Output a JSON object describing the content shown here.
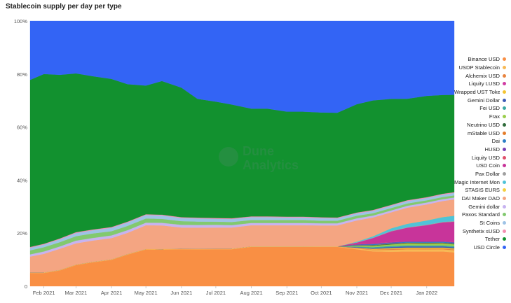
{
  "chart_data": {
    "type": "area",
    "title": "Stablecoin supply per day per type",
    "xlabel": "",
    "ylabel": "",
    "ylim": [
      0,
      100
    ],
    "y_ticks": [
      "0",
      "20%",
      "40%",
      "60%",
      "80%",
      "100%"
    ],
    "x_ticks": [
      "Feb 2021",
      "Mar 2021",
      "Apr 2021",
      "May 2021",
      "Jun 2021",
      "Jul 2021",
      "Aug 2021",
      "Sep 2021",
      "Oct 2021",
      "Nov 2021",
      "Dec 2021",
      "Jan 2022"
    ],
    "x": [
      "2021-01-20",
      "2021-02-01",
      "2021-02-15",
      "2021-03-01",
      "2021-03-15",
      "2021-04-01",
      "2021-04-15",
      "2021-05-01",
      "2021-05-15",
      "2021-06-01",
      "2021-06-15",
      "2021-07-01",
      "2021-07-15",
      "2021-08-01",
      "2021-08-15",
      "2021-09-01",
      "2021-09-15",
      "2021-10-01",
      "2021-10-15",
      "2021-11-01",
      "2021-11-15",
      "2021-12-01",
      "2021-12-15",
      "2022-01-01",
      "2022-01-15",
      "2022-01-25"
    ],
    "legend_position": "right",
    "watermark": "Dune Analytics",
    "series": [
      {
        "name": "Binance USD",
        "color": "#f98f44",
        "values": [
          5,
          5,
          6,
          8,
          9,
          10,
          12,
          14,
          14,
          14,
          14,
          14,
          14,
          15,
          15,
          15,
          15,
          15,
          15,
          14,
          13,
          13,
          13,
          13,
          13,
          12.5
        ]
      },
      {
        "name": "USDP Stablecoin",
        "color": "#f7b955",
        "values": [
          0.2,
          0.2,
          0.2,
          0.2,
          0.2,
          0.2,
          0.2,
          0.2,
          0.2,
          0.2,
          0.2,
          0.2,
          0.2,
          0.2,
          0.2,
          0.2,
          0.2,
          0.2,
          0.2,
          0.3,
          0.5,
          0.7,
          0.8,
          0.8,
          0.8,
          0.8
        ]
      },
      {
        "name": "Alchemix USD",
        "color": "#e8843f",
        "values": [
          0,
          0,
          0,
          0,
          0,
          0,
          0,
          0,
          0,
          0,
          0,
          0,
          0,
          0,
          0,
          0,
          0,
          0,
          0,
          0.1,
          0.2,
          0.3,
          0.3,
          0.3,
          0.3,
          0.3
        ]
      },
      {
        "name": "Liquity LUSD",
        "color": "#d03da4",
        "values": [
          0,
          0,
          0,
          0,
          0,
          0,
          0,
          0,
          0,
          0,
          0,
          0,
          0,
          0,
          0,
          0,
          0,
          0,
          0,
          0,
          0,
          0,
          0,
          0,
          0,
          0
        ]
      },
      {
        "name": "Wrapped UST Token",
        "color": "#f4c431",
        "values": [
          0,
          0,
          0,
          0,
          0,
          0,
          0,
          0,
          0,
          0,
          0,
          0,
          0,
          0,
          0,
          0,
          0,
          0,
          0,
          0.2,
          0.3,
          0.4,
          0.4,
          0.4,
          0.4,
          0.4
        ]
      },
      {
        "name": "Gemini Dollar",
        "color": "#3d5ab5",
        "values": [
          0,
          0,
          0,
          0,
          0,
          0,
          0,
          0,
          0,
          0,
          0,
          0,
          0,
          0,
          0,
          0,
          0,
          0,
          0,
          0.2,
          0.3,
          0.4,
          0.4,
          0.4,
          0.4,
          0.4
        ]
      },
      {
        "name": "Fei USD",
        "color": "#3ba9a3",
        "values": [
          0,
          0,
          0,
          0,
          0,
          0,
          0,
          0,
          0,
          0,
          0,
          0,
          0,
          0,
          0,
          0,
          0,
          0,
          0,
          0.2,
          0.3,
          0.4,
          0.4,
          0.4,
          0.4,
          0.4
        ]
      },
      {
        "name": "Frax",
        "color": "#9bce4c",
        "values": [
          0,
          0,
          0,
          0,
          0,
          0,
          0,
          0,
          0,
          0,
          0,
          0,
          0,
          0,
          0,
          0,
          0,
          0,
          0,
          0.3,
          0.5,
          0.6,
          0.7,
          0.7,
          0.7,
          0.7
        ]
      },
      {
        "name": "Neutrino USD",
        "color": "#2f6b3a",
        "values": [
          0,
          0,
          0,
          0,
          0,
          0,
          0,
          0,
          0,
          0,
          0,
          0,
          0,
          0,
          0,
          0,
          0,
          0,
          0,
          0.1,
          0.2,
          0.2,
          0.2,
          0.2,
          0.2,
          0.2
        ]
      },
      {
        "name": "mStable USD",
        "color": "#e47d2c",
        "values": [
          0,
          0,
          0,
          0,
          0,
          0,
          0,
          0,
          0,
          0,
          0,
          0,
          0,
          0,
          0,
          0,
          0,
          0,
          0,
          0.1,
          0.1,
          0.1,
          0.1,
          0.1,
          0.1,
          0.1
        ]
      },
      {
        "name": "Dai",
        "color": "#2b7ec6",
        "values": [
          0,
          0,
          0,
          0,
          0,
          0,
          0,
          0,
          0,
          0,
          0,
          0,
          0,
          0,
          0,
          0,
          0,
          0,
          0,
          0.2,
          0.3,
          0.3,
          0.3,
          0.3,
          0.3,
          0.3
        ]
      },
      {
        "name": "HUSD",
        "color": "#7b3fb5",
        "values": [
          0,
          0,
          0,
          0,
          0,
          0,
          0,
          0,
          0,
          0,
          0,
          0,
          0,
          0,
          0,
          0,
          0,
          0,
          0,
          0.2,
          0.2,
          0.2,
          0.2,
          0.2,
          0.2,
          0.2
        ]
      },
      {
        "name": "Liquity USD",
        "color": "#e0506b",
        "values": [
          0,
          0,
          0,
          0,
          0,
          0,
          0,
          0,
          0,
          0,
          0,
          0,
          0,
          0,
          0,
          0,
          0,
          0,
          0,
          0.1,
          0.1,
          0.1,
          0.1,
          0.1,
          0.1,
          0.1
        ]
      },
      {
        "name": "USD Coin",
        "color": "#c8349a",
        "values": [
          0,
          0,
          0,
          0,
          0,
          0,
          0,
          0,
          0,
          0,
          0,
          0,
          0,
          0,
          0,
          0,
          0,
          0,
          0,
          0.5,
          2,
          4,
          5,
          6,
          7,
          7.5
        ]
      },
      {
        "name": "Pax Dollar",
        "color": "#a0a0a0",
        "values": [
          0,
          0,
          0,
          0,
          0,
          0,
          0,
          0,
          0,
          0,
          0,
          0,
          0,
          0,
          0,
          0,
          0,
          0,
          0,
          0.1,
          0.1,
          0.2,
          0.2,
          0.2,
          0.2,
          0.2
        ]
      },
      {
        "name": "Magic Internet Money",
        "color": "#4fc3d8",
        "values": [
          0,
          0,
          0,
          0,
          0,
          0,
          0,
          0,
          0,
          0,
          0,
          0,
          0,
          0,
          0,
          0,
          0,
          0,
          0,
          0.3,
          0.6,
          1,
          1.3,
          1.6,
          1.8,
          2
        ]
      },
      {
        "name": "STASIS EURS",
        "color": "#f4d03f",
        "values": [
          0,
          0,
          0,
          0,
          0,
          0,
          0,
          0,
          0,
          0,
          0,
          0,
          0,
          0,
          0,
          0,
          0,
          0,
          0,
          0,
          0,
          0,
          0,
          0,
          0,
          0
        ]
      },
      {
        "name": "DAI Maker DAO",
        "color": "#f4a582",
        "values": [
          6,
          7,
          8,
          8,
          8,
          8,
          8,
          9,
          9,
          8,
          8,
          8,
          8,
          8,
          8,
          8,
          8,
          8,
          8,
          8,
          7,
          6,
          6,
          6,
          6,
          6
        ]
      },
      {
        "name": "Gemini dollar",
        "color": "#c7b3f0",
        "values": [
          0.8,
          0.9,
          0.9,
          1,
          1,
          1,
          1,
          1,
          1,
          1,
          1,
          1,
          0.9,
          0.9,
          0.9,
          0.9,
          0.9,
          0.8,
          0.8,
          0.8,
          0.7,
          0.7,
          0.7,
          0.7,
          0.7,
          0.7
        ]
      },
      {
        "name": "Paxos Standard",
        "color": "#82c96f",
        "values": [
          1.5,
          1.6,
          1.6,
          1.7,
          1.7,
          1.6,
          1.6,
          1.6,
          1.5,
          1.4,
          1.3,
          1.2,
          1.2,
          1.1,
          1.1,
          1.1,
          1.1,
          1.0,
          1.0,
          1.0,
          0.9,
          0.9,
          0.9,
          0.8,
          0.8,
          0.8
        ]
      },
      {
        "name": "St Coins",
        "color": "#9ec3e6",
        "values": [
          1,
          1,
          1.1,
          1.2,
          1.2,
          1.3,
          1.3,
          1.3,
          1.3,
          1.2,
          1.2,
          1.1,
          1.1,
          1.1,
          1.1,
          1.0,
          1.0,
          1.0,
          0.9,
          0.9,
          0.9,
          0.9,
          0.9,
          0.9,
          0.9,
          0.9
        ]
      },
      {
        "name": "Synthetix sUSD",
        "color": "#f48fb1",
        "values": [
          0.3,
          0.3,
          0.3,
          0.3,
          0.3,
          0.3,
          0.3,
          0.3,
          0.3,
          0.3,
          0.3,
          0.3,
          0.3,
          0.3,
          0.3,
          0.3,
          0.3,
          0.3,
          0.3,
          0.3,
          0.3,
          0.3,
          0.3,
          0.3,
          0.3,
          0.3
        ]
      },
      {
        "name": "Tether",
        "color": "#12912f",
        "values": [
          63,
          64,
          62,
          60,
          58,
          56,
          52,
          49,
          51,
          49,
          45,
          44,
          43,
          41,
          41,
          40,
          40,
          40,
          40,
          41,
          41,
          40,
          38,
          38,
          37,
          36
        ]
      },
      {
        "name": "USD Circle",
        "color": "#3364f5",
        "values": [
          22.2,
          20,
          20.4,
          19.8,
          20.8,
          21.9,
          23.9,
          24.6,
          22.9,
          25.2,
          29.5,
          30.5,
          31.6,
          33.4,
          33.4,
          34.5,
          34.5,
          34.9,
          35,
          31.5,
          29.7,
          29.4,
          29.1,
          28.1,
          27.7,
          27.3
        ]
      }
    ]
  }
}
